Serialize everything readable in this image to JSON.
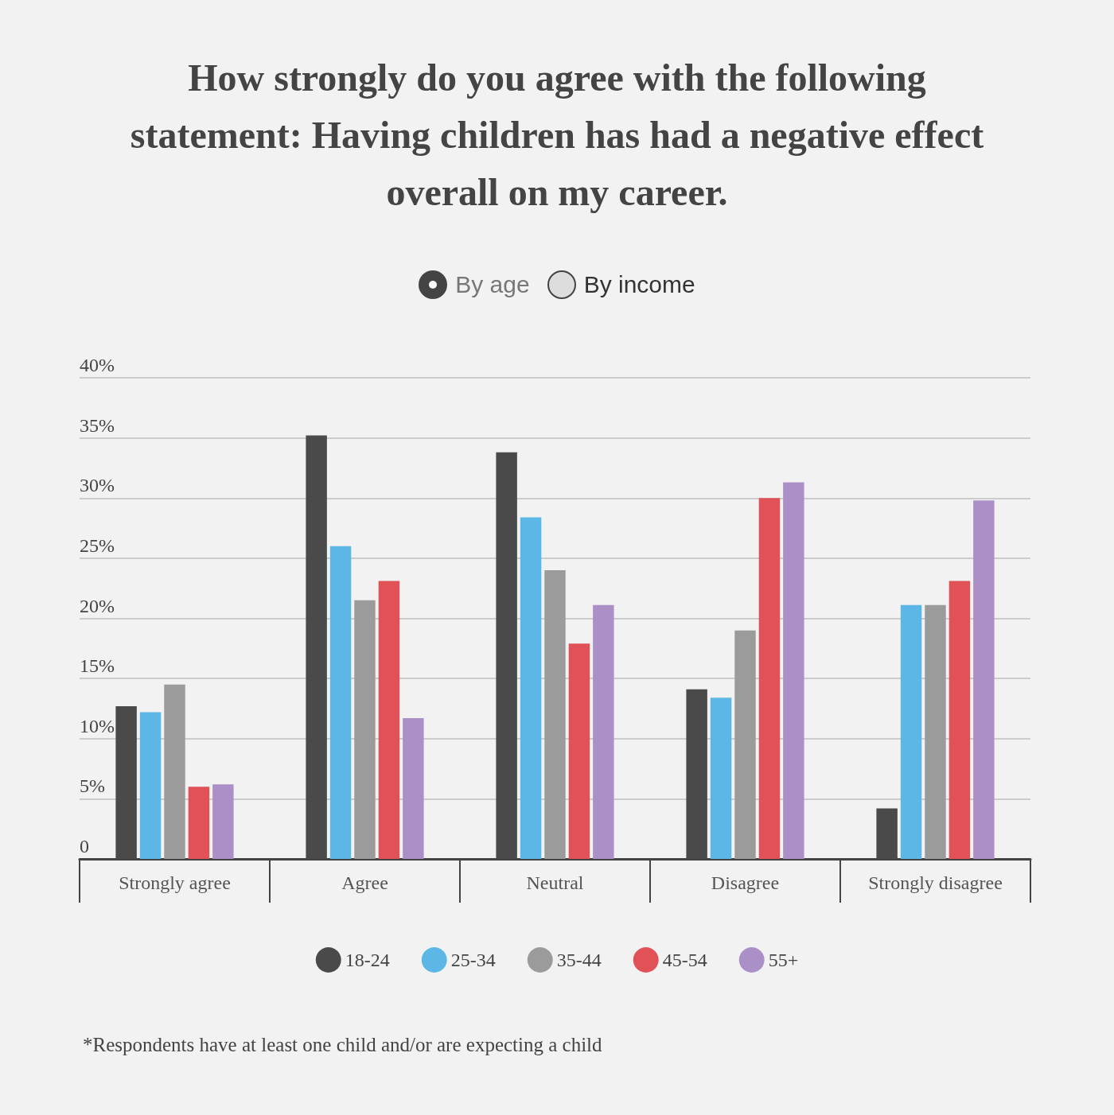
{
  "chart_data": {
    "type": "bar",
    "title": "How strongly do you agree with the following statement: Having children has had a negative effect overall on my career.",
    "categories": [
      "Strongly agree",
      "Agree",
      "Neutral",
      "Disagree",
      "Strongly disagree"
    ],
    "series": [
      {
        "name": "18-24",
        "color": "#4a4a4a",
        "values": [
          12.7,
          35.2,
          33.8,
          14.1,
          4.2
        ]
      },
      {
        "name": "25-34",
        "color": "#5db7e6",
        "values": [
          12.2,
          26.0,
          28.4,
          13.4,
          21.1
        ]
      },
      {
        "name": "35-44",
        "color": "#9b9b9b",
        "values": [
          14.5,
          21.5,
          24.0,
          19.0,
          21.1
        ]
      },
      {
        "name": "45-54",
        "color": "#e05257",
        "values": [
          6.0,
          23.1,
          17.9,
          30.0,
          23.1
        ]
      },
      {
        "name": "55+",
        "color": "#ab8fc7",
        "values": [
          6.2,
          11.7,
          21.1,
          31.3,
          29.8
        ]
      }
    ],
    "ylim": [
      0,
      40
    ],
    "yticks": [
      {
        "value": 0,
        "label": "0"
      },
      {
        "value": 5,
        "label": "5%"
      },
      {
        "value": 10,
        "label": "10%"
      },
      {
        "value": 15,
        "label": "15%"
      },
      {
        "value": 20,
        "label": "20%"
      },
      {
        "value": 25,
        "label": "25%"
      },
      {
        "value": 30,
        "label": "30%"
      },
      {
        "value": 35,
        "label": "35%"
      },
      {
        "value": 40,
        "label": "40%"
      }
    ],
    "grid": "y",
    "legend": "bottom",
    "annotations": [
      "By age",
      "By income",
      "*Respondents have at least one child and/or are expecting a child"
    ]
  }
}
